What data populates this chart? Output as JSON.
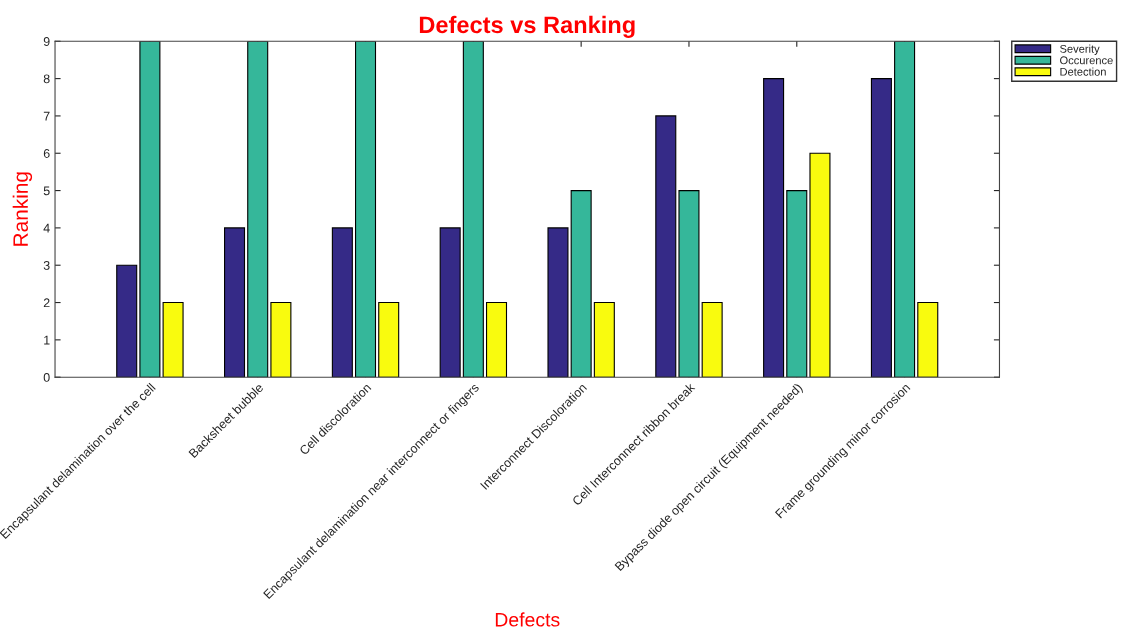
{
  "chart_data": {
    "type": "bar",
    "title": "Defects vs Ranking",
    "xlabel": "Defects",
    "ylabel": "Ranking",
    "categories": [
      "Encapsulant delamination over the cell",
      "Backsheet bubble",
      "Cell discoloration",
      "Encapsulant delamination near interconnect or fingers",
      "Interconnect Discoloration",
      "Cell Interconnect ribbon break",
      "Bypass diode open circuit (Equipment needed)",
      "Frame grounding minor corrosion"
    ],
    "series": [
      {
        "name": "Severity",
        "color": "#352a87",
        "values": [
          3,
          4,
          4,
          4,
          4,
          7,
          8,
          8
        ]
      },
      {
        "name": "Occurence",
        "color": "#35b79a",
        "values": [
          9,
          9,
          9,
          9,
          5,
          5,
          5,
          9
        ]
      },
      {
        "name": "Detection",
        "color": "#f9fb0e",
        "values": [
          2,
          2,
          2,
          2,
          2,
          2,
          6,
          2
        ]
      }
    ],
    "ylim": [
      0,
      9
    ],
    "yticks": [
      0,
      1,
      2,
      3,
      4,
      5,
      6,
      7,
      8,
      9
    ],
    "grid": false,
    "legend": "top right"
  }
}
